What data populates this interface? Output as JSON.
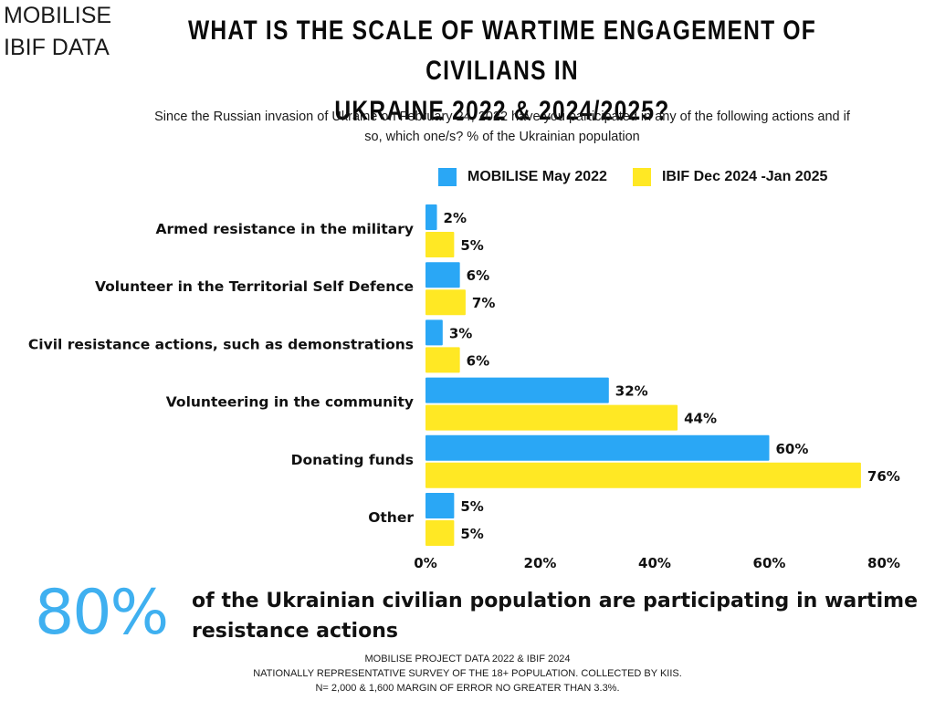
{
  "brand": {
    "line1": "MOBILISE",
    "line2": "IBIF DATA"
  },
  "header": {
    "title_line1": "WHAT IS THE SCALE OF WARTIME ENGAGEMENT OF CIVILIANS IN",
    "title_line2": "UKRAINE 2022 & 2024/2025?",
    "subtitle_line1": "Since the Russian invasion of Ukraine on February 24, 2022 have you participated in any of the following actions and if",
    "subtitle_line2": "so, which one/s? % of the Ukrainian population"
  },
  "chart_data": {
    "type": "bar",
    "orientation": "horizontal",
    "title": "WHAT IS THE SCALE OF WARTIME ENGAGEMENT OF CIVILIANS IN UKRAINE 2022 & 2024/2025?",
    "subtitle": "Since the Russian invasion of Ukraine on February 24, 2022 have you participated in any of the following actions and if so, which one/s? % of the Ukrainian population",
    "xlabel": "",
    "ylabel": "",
    "xlim": [
      0,
      80
    ],
    "x_ticks": [
      0,
      20,
      40,
      60,
      80
    ],
    "x_tick_labels": [
      "0%",
      "20%",
      "40%",
      "60%",
      "80%"
    ],
    "grid": false,
    "legend_position": "top",
    "categories": [
      "Armed resistance in the military",
      "Volunteer in the Territorial Self Defence",
      "Civil resistance actions, such as demonstrations",
      "Volunteering in the community",
      "Donating funds",
      "Other"
    ],
    "series": [
      {
        "name": "MOBILISE May 2022",
        "color": "#2aa7f5",
        "values": [
          2,
          6,
          3,
          32,
          60,
          5
        ],
        "labels": [
          "2%",
          "6%",
          "3%",
          "32%",
          "60%",
          "5%"
        ]
      },
      {
        "name": "IBIF Dec 2024 -Jan 2025",
        "color": "#ffe824",
        "values": [
          5,
          7,
          6,
          44,
          76,
          5
        ],
        "labels": [
          "5%",
          "7%",
          "6%",
          "44%",
          "76%",
          "5%"
        ]
      }
    ]
  },
  "highlight": {
    "value": "80%",
    "color": "#3fb0f0",
    "text": "of the Ukrainian civilian population are participating in wartime resistance actions"
  },
  "footer": {
    "line1": "MOBILISE PROJECT DATA 2022  &  IBIF 2024",
    "line2": "NATIONALLY REPRESENTATIVE SURVEY  OF THE 18+ POPULATION. COLLECTED BY KIIS.",
    "line3": "N= 2,000  & 1,600 MARGIN OF ERROR NO GREATER THAN 3.3%."
  }
}
